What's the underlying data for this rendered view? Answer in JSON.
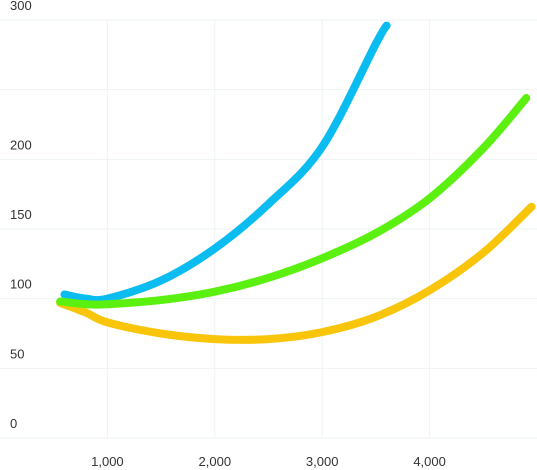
{
  "chart_data": {
    "type": "line",
    "title": "",
    "xlabel": "",
    "ylabel": "",
    "xlim": [
      0,
      5000
    ],
    "ylim": [
      0,
      300
    ],
    "x_ticks": [
      1000,
      2000,
      3000,
      4000
    ],
    "x_tick_labels": [
      "1,000",
      "2,000",
      "3,000",
      "4,000"
    ],
    "y_ticks": [
      0,
      50,
      100,
      150,
      200,
      300
    ],
    "y_tick_labels": [
      "0",
      "50",
      "100",
      "150",
      "200",
      "300"
    ],
    "grid": true,
    "legend": "none",
    "series": [
      {
        "color": "#0bbcf0",
        "points": [
          [
            600,
            103
          ],
          [
            800,
            100
          ],
          [
            1000,
            100
          ],
          [
            1500,
            113
          ],
          [
            2000,
            136
          ],
          [
            2500,
            168
          ],
          [
            3000,
            209
          ],
          [
            3500,
            283
          ],
          [
            3600,
            296
          ]
        ]
      },
      {
        "color": "#5bf00f",
        "points": [
          [
            560,
            98
          ],
          [
            800,
            96
          ],
          [
            1000,
            96
          ],
          [
            1500,
            99
          ],
          [
            2000,
            105
          ],
          [
            2500,
            115
          ],
          [
            3000,
            129
          ],
          [
            3500,
            147
          ],
          [
            4000,
            172
          ],
          [
            4500,
            208
          ],
          [
            4900,
            244
          ]
        ]
      },
      {
        "color": "#f8c50b",
        "points": [
          [
            560,
            97
          ],
          [
            800,
            90
          ],
          [
            1000,
            83
          ],
          [
            1500,
            75
          ],
          [
            2000,
            71
          ],
          [
            2500,
            71
          ],
          [
            3000,
            76
          ],
          [
            3500,
            87
          ],
          [
            4000,
            106
          ],
          [
            4500,
            133
          ],
          [
            4950,
            166
          ]
        ]
      }
    ]
  }
}
